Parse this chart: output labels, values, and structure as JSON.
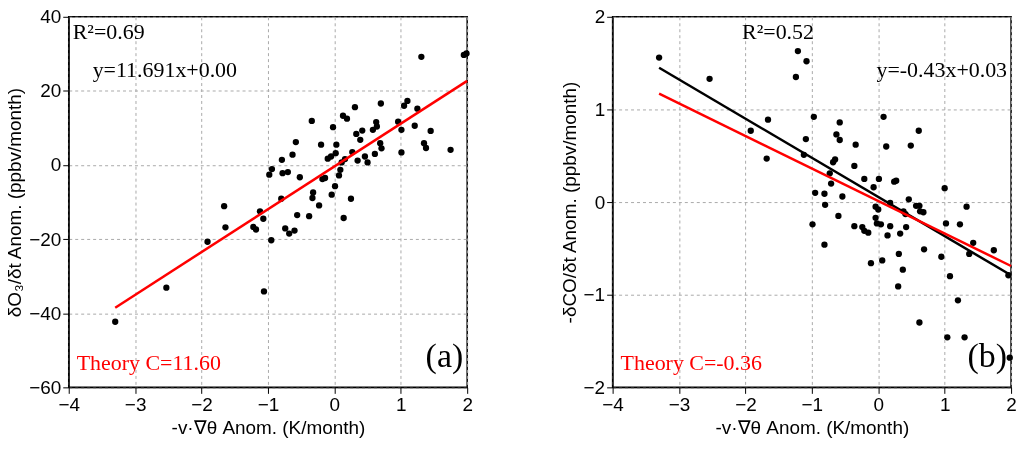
{
  "chart_data": [
    {
      "type": "scatter",
      "xlabel": "-v·∇θ  Anom. (K/month)",
      "ylabel": "δO₃/δt Anom. (ppbv/month)",
      "xlim": [
        -4,
        2
      ],
      "ylim": [
        -60,
        40
      ],
      "xticks": [
        -4,
        -3,
        -2,
        -1,
        0,
        1,
        2
      ],
      "yticks": [
        -60,
        -40,
        -20,
        0,
        20,
        40
      ],
      "grid": true,
      "annotations": [
        "R²=0.69",
        "y=11.691x+0.00",
        "Theory C=11.60",
        "(a)"
      ],
      "series": [
        {
          "marker": "circle",
          "color": "#000000",
          "x": [
            -3.3,
            -2.53,
            -1.91,
            -1.66,
            -1.64,
            -1.22,
            -1.18,
            -1.12,
            -1.07,
            -1.06,
            -0.95,
            -0.98,
            -0.94,
            -0.8,
            -0.79,
            -0.78,
            -0.7,
            -0.74,
            -0.68,
            -0.6,
            -0.63,
            -0.58,
            -0.56,
            -0.52,
            -0.38,
            -0.34,
            -0.33,
            -0.32,
            -0.23,
            -0.2,
            -0.18,
            -0.14,
            -0.1,
            -0.05,
            -0.04,
            -0.02,
            0.01,
            0.03,
            0.02,
            0.07,
            0.09,
            0.11,
            0.16,
            0.14,
            0.13,
            0.19,
            0.25,
            0.27,
            0.31,
            0.33,
            0.35,
            0.39,
            0.42,
            0.46,
            0.5,
            0.58,
            0.63,
            0.64,
            0.61,
            0.69,
            0.71,
            0.7,
            0.96,
            1.01,
            1.01,
            1.05,
            1.1,
            1.21,
            1.25,
            1.31,
            1.35,
            1.38,
            1.45,
            1.75,
            1.95,
            1.99
          ],
          "values": [
            -42.3,
            -33.1,
            -20.7,
            -11.1,
            -16.8,
            -16.7,
            -17.4,
            -12.5,
            -14.5,
            -34.1,
            -20.3,
            -2.6,
            -1.1,
            -9.1,
            1.4,
            -2.2,
            -1.9,
            -17.1,
            -18.5,
            -17.7,
            2.8,
            6.2,
            -13.5,
            -3.3,
            -13.8,
            11.9,
            -8.9,
            -7.4,
            -10.9,
            5.5,
            -3.8,
            -3.5,
            1.7,
            2.3,
            -8.0,
            10.2,
            -5.7,
            5.5,
            3.2,
            -2.8,
            -1.3,
            0.7,
            1.6,
            -14.3,
            13.3,
            12.5,
            -9.1,
            3.5,
            15.6,
            8.4,
            1.2,
            6.8,
            9.3,
            2.3,
            0.7,
            9.5,
            11.6,
            10.4,
            3.0,
            5.9,
            4.5,
            16.6,
            11.7,
            9.5,
            3.4,
            16.0,
            17.3,
            10.6,
            15.2,
            29.2,
            5.9,
            4.6,
            9.2,
            4.1,
            29.7,
            30.1
          ]
        },
        {
          "type": "line",
          "line_style": "solid",
          "color": "#ff0000",
          "x": [
            -3.3,
            2.0
          ],
          "values": [
            -38.5,
            22.7
          ]
        }
      ]
    },
    {
      "type": "scatter",
      "xlabel": "-v·∇θ  Anom. (K/month)",
      "ylabel": "-δCO/δt Anom. (ppbv/month)",
      "xlim": [
        -4,
        2
      ],
      "ylim": [
        -2,
        2
      ],
      "xticks": [
        -4,
        -3,
        -2,
        -1,
        0,
        1,
        2
      ],
      "yticks": [
        -2,
        -1,
        0,
        1,
        2
      ],
      "grid": true,
      "annotations": [
        "R²=0.52",
        "y=-0.43x+0.03",
        "Theory C=-0.36",
        "(b)"
      ],
      "series": [
        {
          "marker": "circle",
          "color": "#000000",
          "x": [
            -3.3,
            -2.54,
            -1.92,
            -1.66,
            -1.68,
            -1.21,
            -1.08,
            -1.24,
            -0.97,
            -1.09,
            -1.12,
            -0.95,
            -0.81,
            -0.8,
            -0.99,
            -0.81,
            -0.73,
            -0.71,
            -0.68,
            -0.65,
            -0.63,
            -0.58,
            -0.58,
            -0.54,
            -0.6,
            -0.36,
            -0.34,
            -0.36,
            -0.24,
            -0.21,
            -0.15,
            -0.21,
            -0.11,
            -0.07,
            0.01,
            -0.04,
            0.0,
            -0.04,
            -0.02,
            0.04,
            0.06,
            0.08,
            0.12,
            0.14,
            0.18,
            0.18,
            0.24,
            0.27,
            0.33,
            0.31,
            0.3,
            0.37,
            0.38,
            0.41,
            0.42,
            0.46,
            0.49,
            0.57,
            0.62,
            0.63,
            0.68,
            0.61,
            0.62,
            0.69,
            0.95,
            1.0,
            1.02,
            1.08,
            1.04,
            1.2,
            1.23,
            1.3,
            1.33,
            1.37,
            1.43,
            1.74,
            1.96,
            1.98
          ],
          "values": [
            1.56,
            1.33,
            0.77,
            0.89,
            0.47,
            1.63,
            1.52,
            1.35,
            0.92,
            0.68,
            0.51,
            0.1,
            0.09,
            -0.03,
            -0.24,
            -0.46,
            0.31,
            0.2,
            0.43,
            0.46,
            0.73,
            0.67,
            0.86,
            0.06,
            -0.15,
            0.39,
            0.62,
            -0.26,
            -0.27,
            -0.31,
            -0.33,
            0.25,
            -0.66,
            0.16,
            0.25,
            -0.05,
            -0.08,
            -0.17,
            -0.23,
            -0.24,
            -0.63,
            0.92,
            0.6,
            -0.36,
            -0.26,
            -0.01,
            0.22,
            0.23,
            -0.34,
            -0.56,
            -0.91,
            -0.73,
            -0.1,
            -0.13,
            -0.27,
            0.03,
            0.61,
            -0.04,
            -0.04,
            -0.1,
            -0.11,
            0.77,
            -1.3,
            -0.51,
            -0.59,
            0.15,
            -0.23,
            -0.8,
            -1.46,
            -1.06,
            -0.24,
            -1.46,
            -0.05,
            -0.56,
            -0.44,
            -0.52,
            -0.79,
            -1.68
          ]
        },
        {
          "type": "line",
          "line_style": "solid",
          "color": "#000000",
          "x": [
            -3.3,
            2.0
          ],
          "values": [
            1.45,
            -0.79
          ]
        },
        {
          "type": "line",
          "line_style": "solid",
          "color": "#ff0000",
          "x": [
            -3.3,
            2.0
          ],
          "values": [
            1.17,
            -0.69
          ]
        }
      ]
    }
  ]
}
